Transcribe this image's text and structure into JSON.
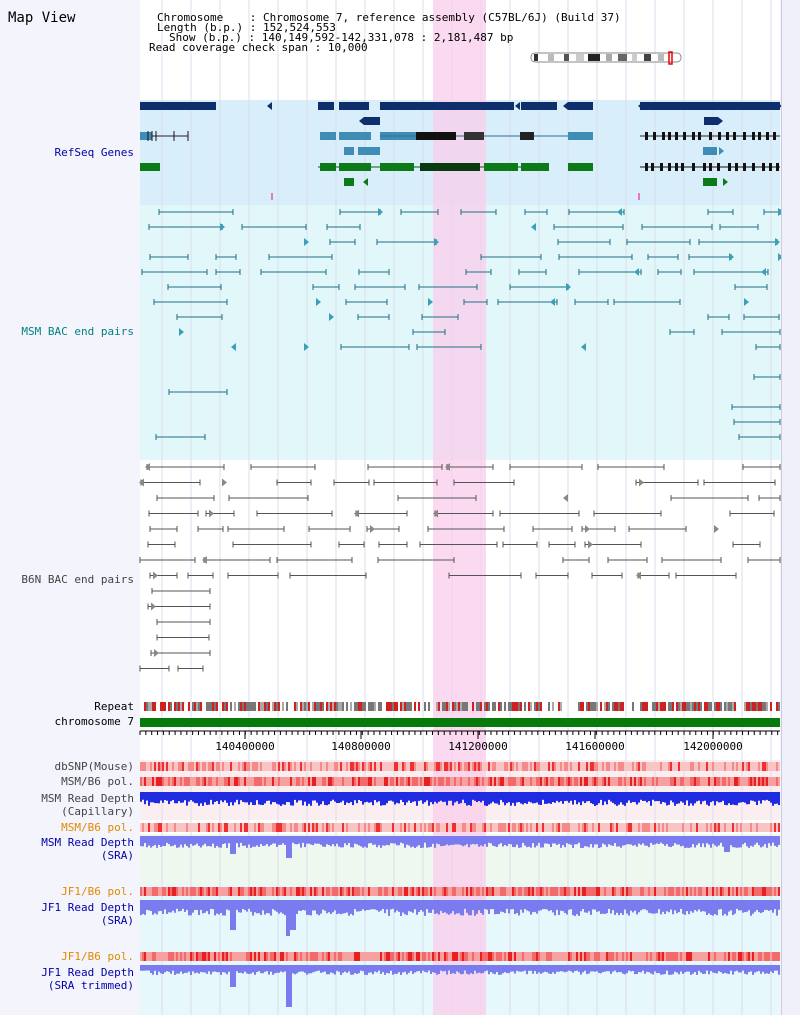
{
  "title": "Map View",
  "header": {
    "chromosome_label": "Chromosome",
    "chromosome_value": "Chromosome 7, reference assembly (C57BL/6J) (Build 37)",
    "length_label": "Length (b.p.)",
    "length_value": "152,524,553",
    "show_label": "Show (b.p.)",
    "show_value": "140,149,592-142,331,078 : 2,181,487 bp",
    "coverage_label": "Read coverage check span",
    "coverage_value": "10,000"
  },
  "tracks": {
    "refseq": "RefSeq Genes",
    "msm_bac": "MSM BAC end pairs",
    "b6n_bac": "B6N BAC end pairs",
    "repeat": "Repeat",
    "chromosome": "chromosome 7",
    "dbsnp": "dbSNP(Mouse)",
    "msm_b6_pol_1": "MSM/B6 pol.",
    "msm_depth_cap_1": "MSM Read Depth",
    "msm_depth_cap_2": "(Capillary)",
    "msm_b6_pol_2": "MSM/B6 pol.",
    "msm_depth_sra_1": "MSM Read Depth",
    "msm_depth_sra_2": "(SRA)",
    "jf1_b6_pol_1": "JF1/B6 pol.",
    "jf1_depth_sra_1": "JF1 Read Depth",
    "jf1_depth_sra_2": "(SRA)",
    "jf1_b6_pol_2": "JF1/B6 pol.",
    "jf1_depth_trim_1": "JF1 Read Depth",
    "jf1_depth_trim_2": "(SRA trimmed)"
  },
  "axis": {
    "ticks": [
      "140400000",
      "140800000",
      "141200000",
      "141600000",
      "142000000"
    ]
  },
  "colors": {
    "refseq_bg": "#d8eefa",
    "msm_bg": "#e2f7f9",
    "highlight": "#f9cdec",
    "gene_dark": "#0e2f6b",
    "gene_mid": "#3f8db5",
    "gene_green": "#0c7a16",
    "chrom_green": "#087a0c",
    "depth_blue": "#1f2be0",
    "depth_violet": "#7b7bf0",
    "label_blue": "#0000aa",
    "label_teal": "#008080",
    "label_orange": "#e08a00"
  }
}
